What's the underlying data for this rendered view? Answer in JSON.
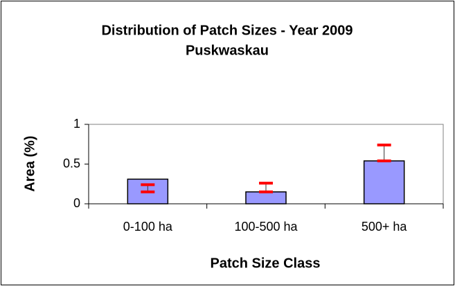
{
  "chart_data": {
    "type": "bar",
    "title": [
      "Distribution of Patch Sizes - Year 2009",
      "Puskwaskau"
    ],
    "x_label": "Patch Size Class",
    "y_label": "Area (%)",
    "categories": [
      "0-100 ha",
      "100-500 ha",
      "500+ ha"
    ],
    "values": [
      0.31,
      0.15,
      0.54
    ],
    "error_bars": {
      "low": [
        0.15,
        0.15,
        0.54
      ],
      "high": [
        0.24,
        0.26,
        0.74
      ],
      "color": "#ff0000"
    },
    "color": "#9999ff",
    "ylim": [
      0,
      1
    ],
    "yticks": [
      0,
      0.5,
      1
    ],
    "grid": false
  }
}
